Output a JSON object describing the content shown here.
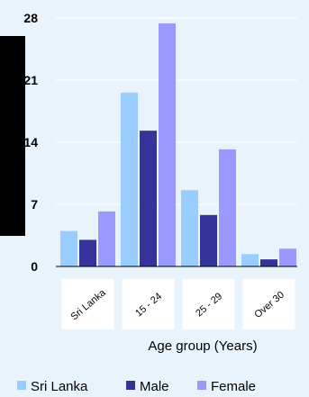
{
  "chart_data": {
    "type": "bar",
    "categories": [
      "Sri Lanka",
      "15 - 24",
      "25 - 29",
      "Over 30"
    ],
    "series": [
      {
        "name": "Sri Lanka",
        "color": "#99ccff",
        "values": [
          4.0,
          19.6,
          8.6,
          1.4
        ]
      },
      {
        "name": "Male",
        "color": "#333399",
        "values": [
          3.0,
          15.3,
          5.8,
          0.8
        ]
      },
      {
        "name": "Female",
        "color": "#9999ff",
        "values": [
          6.2,
          27.4,
          13.2,
          2.0
        ]
      }
    ],
    "yticks": [
      "0",
      "7",
      "14",
      "21",
      "28"
    ],
    "ylim": [
      0,
      28
    ],
    "xlabel": "Age group (Years)",
    "ylabel": "",
    "grid": true,
    "legend_position": "bottom",
    "colors": {
      "background": "#e9f3fb",
      "gridline": "#ffffff",
      "axis": "#000000",
      "label_box": "#ffffff"
    }
  }
}
